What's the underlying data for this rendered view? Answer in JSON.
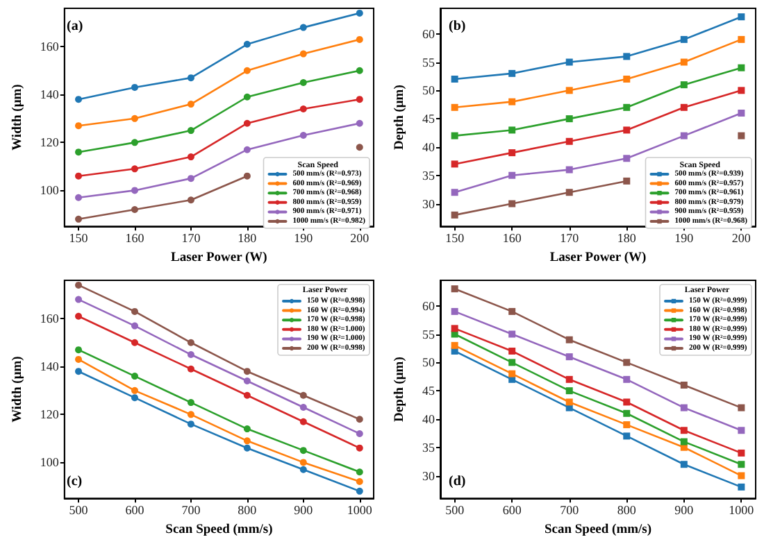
{
  "chart_data": [
    {
      "type": "line",
      "xlabel": "Laser Power (W)",
      "ylabel": "Width (μm)",
      "legend_title": "Scan Speed",
      "annotations": [
        "(a)"
      ],
      "x": [
        150,
        160,
        170,
        180,
        190,
        200
      ],
      "xlim": [
        147.5,
        202.5
      ],
      "xticks": [
        150,
        160,
        170,
        180,
        190,
        200
      ],
      "ylim": [
        85,
        176
      ],
      "yticks": [
        100,
        120,
        140,
        160
      ],
      "grid": false,
      "legend": "bottom right",
      "marker": "circle",
      "line_style": "solid",
      "series": [
        {
          "name": "500 mm/s (R²=0.973)",
          "color": "#1f77b4",
          "values": [
            138,
            143,
            147,
            161,
            168,
            174
          ]
        },
        {
          "name": "600 mm/s (R²=0.969)",
          "color": "#ff7f0e",
          "values": [
            127,
            130,
            136,
            150,
            157,
            163
          ]
        },
        {
          "name": "700 mm/s (R²=0.968)",
          "color": "#2ca02c",
          "values": [
            116,
            120,
            125,
            139,
            145,
            150
          ]
        },
        {
          "name": "800 mm/s (R²=0.959)",
          "color": "#d62728",
          "values": [
            106,
            109,
            114,
            128,
            134,
            138
          ]
        },
        {
          "name": "900 mm/s (R²=0.971)",
          "color": "#9467bd",
          "values": [
            97,
            100,
            105,
            117,
            123,
            128
          ]
        },
        {
          "name": "1000 mm/s (R²=0.982)",
          "color": "#8c564b",
          "values": [
            88,
            92,
            96,
            106,
            null,
            118
          ]
        }
      ]
    },
    {
      "type": "line",
      "xlabel": "Laser Power (W)",
      "ylabel": "Depth (μm)",
      "legend_title": "Scan Speed",
      "annotations": [
        "(b)"
      ],
      "x": [
        150,
        160,
        170,
        180,
        190,
        200
      ],
      "xlim": [
        147.5,
        202.5
      ],
      "xticks": [
        150,
        160,
        170,
        180,
        190,
        200
      ],
      "ylim": [
        26,
        64.5
      ],
      "yticks": [
        30,
        35,
        40,
        45,
        50,
        55,
        60
      ],
      "grid": false,
      "legend": "bottom right",
      "marker": "square",
      "line_style": "solid",
      "series": [
        {
          "name": "500 mm/s (R²=0.939)",
          "color": "#1f77b4",
          "values": [
            52,
            53,
            55,
            56,
            59,
            63
          ]
        },
        {
          "name": "600 mm/s (R²=0.957)",
          "color": "#ff7f0e",
          "values": [
            47,
            48,
            50,
            52,
            55,
            59
          ]
        },
        {
          "name": "700 mm/s (R²=0.961)",
          "color": "#2ca02c",
          "values": [
            42,
            43,
            45,
            47,
            51,
            54
          ]
        },
        {
          "name": "800 mm/s (R²=0.979)",
          "color": "#d62728",
          "values": [
            37,
            39,
            41,
            43,
            47,
            50
          ]
        },
        {
          "name": "900 mm/s (R²=0.959)",
          "color": "#9467bd",
          "values": [
            32,
            35,
            36,
            38,
            42,
            46
          ]
        },
        {
          "name": "1000 mm/s (R²=0.968)",
          "color": "#8c564b",
          "values": [
            28,
            30,
            32,
            34,
            null,
            42
          ]
        }
      ]
    },
    {
      "type": "line",
      "xlabel": "Scan Speed (mm/s)",
      "ylabel": "Width (μm)",
      "legend_title": "Laser Power",
      "annotations": [
        "(c)"
      ],
      "x": [
        500,
        600,
        700,
        800,
        900,
        1000
      ],
      "xlim": [
        475,
        1025
      ],
      "xticks": [
        500,
        600,
        700,
        800,
        900,
        1000
      ],
      "ylim": [
        85,
        176
      ],
      "yticks": [
        100,
        120,
        140,
        160
      ],
      "grid": false,
      "legend": "top right",
      "marker": "circle",
      "line_style": "solid",
      "series": [
        {
          "name": "150 W (R²=0.998)",
          "color": "#1f77b4",
          "values": [
            138,
            127,
            116,
            106,
            97,
            88
          ]
        },
        {
          "name": "160 W (R²=0.994)",
          "color": "#ff7f0e",
          "values": [
            143,
            130,
            120,
            109,
            100,
            92
          ]
        },
        {
          "name": "170 W (R²=0.998)",
          "color": "#2ca02c",
          "values": [
            147,
            136,
            125,
            114,
            105,
            96
          ]
        },
        {
          "name": "180 W (R²=1.000)",
          "color": "#d62728",
          "values": [
            161,
            150,
            139,
            128,
            117,
            106
          ]
        },
        {
          "name": "190 W (R²=1.000)",
          "color": "#9467bd",
          "values": [
            168,
            157,
            145,
            134,
            123,
            112
          ]
        },
        {
          "name": "200 W (R²=0.998)",
          "color": "#8c564b",
          "values": [
            174,
            163,
            150,
            138,
            128,
            118
          ]
        }
      ]
    },
    {
      "type": "line",
      "xlabel": "Scan Speed (mm/s)",
      "ylabel": "Depth (μm)",
      "legend_title": "Laser Power",
      "annotations": [
        "(d)"
      ],
      "x": [
        500,
        600,
        700,
        800,
        900,
        1000
      ],
      "xlim": [
        475,
        1025
      ],
      "xticks": [
        500,
        600,
        700,
        800,
        900,
        1000
      ],
      "ylim": [
        26,
        64.5
      ],
      "yticks": [
        30,
        35,
        40,
        45,
        50,
        55,
        60
      ],
      "grid": false,
      "legend": "top right",
      "marker": "square",
      "line_style": "solid",
      "series": [
        {
          "name": "150 W (R²=0.999)",
          "color": "#1f77b4",
          "values": [
            52,
            47,
            42,
            37,
            32,
            28
          ]
        },
        {
          "name": "160 W (R²=0.998)",
          "color": "#ff7f0e",
          "values": [
            53,
            48,
            43,
            39,
            35,
            30
          ]
        },
        {
          "name": "170 W (R²=0.999)",
          "color": "#2ca02c",
          "values": [
            55,
            50,
            45,
            41,
            36,
            32
          ]
        },
        {
          "name": "180 W (R²=0.999)",
          "color": "#d62728",
          "values": [
            56,
            52,
            47,
            43,
            38,
            34
          ]
        },
        {
          "name": "190 W (R²=0.999)",
          "color": "#9467bd",
          "values": [
            59,
            55,
            51,
            47,
            42,
            38
          ]
        },
        {
          "name": "200 W (R²=0.999)",
          "color": "#8c564b",
          "values": [
            63,
            59,
            54,
            50,
            46,
            42
          ]
        }
      ]
    }
  ]
}
